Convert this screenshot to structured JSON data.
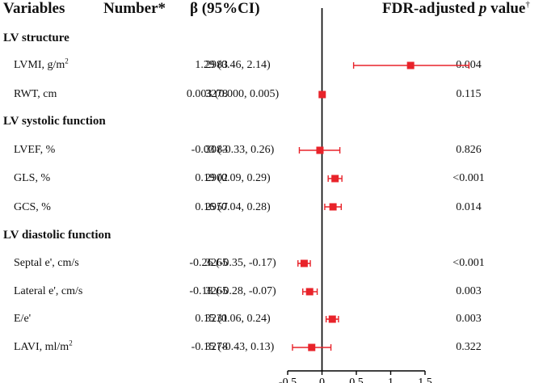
{
  "header": {
    "variables": "Variables",
    "number": "Number*",
    "beta": "β (95%CI)",
    "p_prefix": "FDR-adjusted ",
    "p_italic": "p",
    "p_suffix": " value",
    "p_dagger": "†"
  },
  "sections": [
    {
      "title": "LV structure"
    },
    {
      "title": "LV systolic function"
    },
    {
      "title": "LV diastolic function"
    }
  ],
  "rows": [
    {
      "variable": "LVMI, g/m",
      "sup": "2",
      "n": "2983",
      "beta_text": "1.29 (0.46, 2.14)",
      "p": "0.004"
    },
    {
      "variable": "RWT, cm",
      "sup": "",
      "n": "3278",
      "beta_text": "0.003 (0.000, 0.005)",
      "p": "0.115"
    },
    {
      "variable": "LVEF, %",
      "sup": "",
      "n": "3083",
      "beta_text": "-0.03 (-0.33, 0.26)",
      "p": "0.826"
    },
    {
      "variable": "GLS, %",
      "sup": "",
      "n": "2902",
      "beta_text": "0.19 (0.09, 0.29)",
      "p": "<0.001"
    },
    {
      "variable": "GCS, %",
      "sup": "",
      "n": "2957",
      "beta_text": "0.16 (0.04, 0.28)",
      "p": "0.014"
    },
    {
      "variable": "Septal e', cm/s",
      "sup": "",
      "n": "3265",
      "beta_text": "-0.26 (-0.35, -0.17)",
      "p": "<0.001"
    },
    {
      "variable": "Lateral e', cm/s",
      "sup": "",
      "n": "3265",
      "beta_text": "-0.18 (-0.28, -0.07)",
      "p": "0.003"
    },
    {
      "variable": "E/e'",
      "sup": "",
      "n": "3231",
      "beta_text": "0.15 (0.06, 0.24)",
      "p": "0.003"
    },
    {
      "variable": "LAVI, ml/m",
      "sup": "2",
      "n": "3278",
      "beta_text": "-0.15 (-0.43, 0.13)",
      "p": "0.322"
    }
  ],
  "chart_data": {
    "type": "scatter",
    "subtype": "forest",
    "categories": [
      "LVMI, g/m2",
      "RWT, cm",
      "LVEF, %",
      "GLS, %",
      "GCS, %",
      "Septal e', cm/s",
      "Lateral e', cm/s",
      "E/e'",
      "LAVI, ml/m2"
    ],
    "series": [
      {
        "estimate": [
          1.29,
          0.003,
          -0.03,
          0.19,
          0.16,
          -0.26,
          -0.18,
          0.15,
          -0.15
        ],
        "ci_low": [
          0.46,
          0.0,
          -0.33,
          0.09,
          0.04,
          -0.35,
          -0.28,
          0.06,
          -0.43
        ],
        "ci_high": [
          2.14,
          0.005,
          0.26,
          0.29,
          0.28,
          -0.17,
          -0.07,
          0.24,
          0.13
        ]
      }
    ],
    "xlim": [
      -0.5,
      1.5
    ],
    "xticks": [
      "-0.5",
      "0",
      "0.5",
      "1",
      "1.5"
    ],
    "reference_line": 0,
    "marker_color": "#e8232a",
    "axis_color": "#000000"
  }
}
